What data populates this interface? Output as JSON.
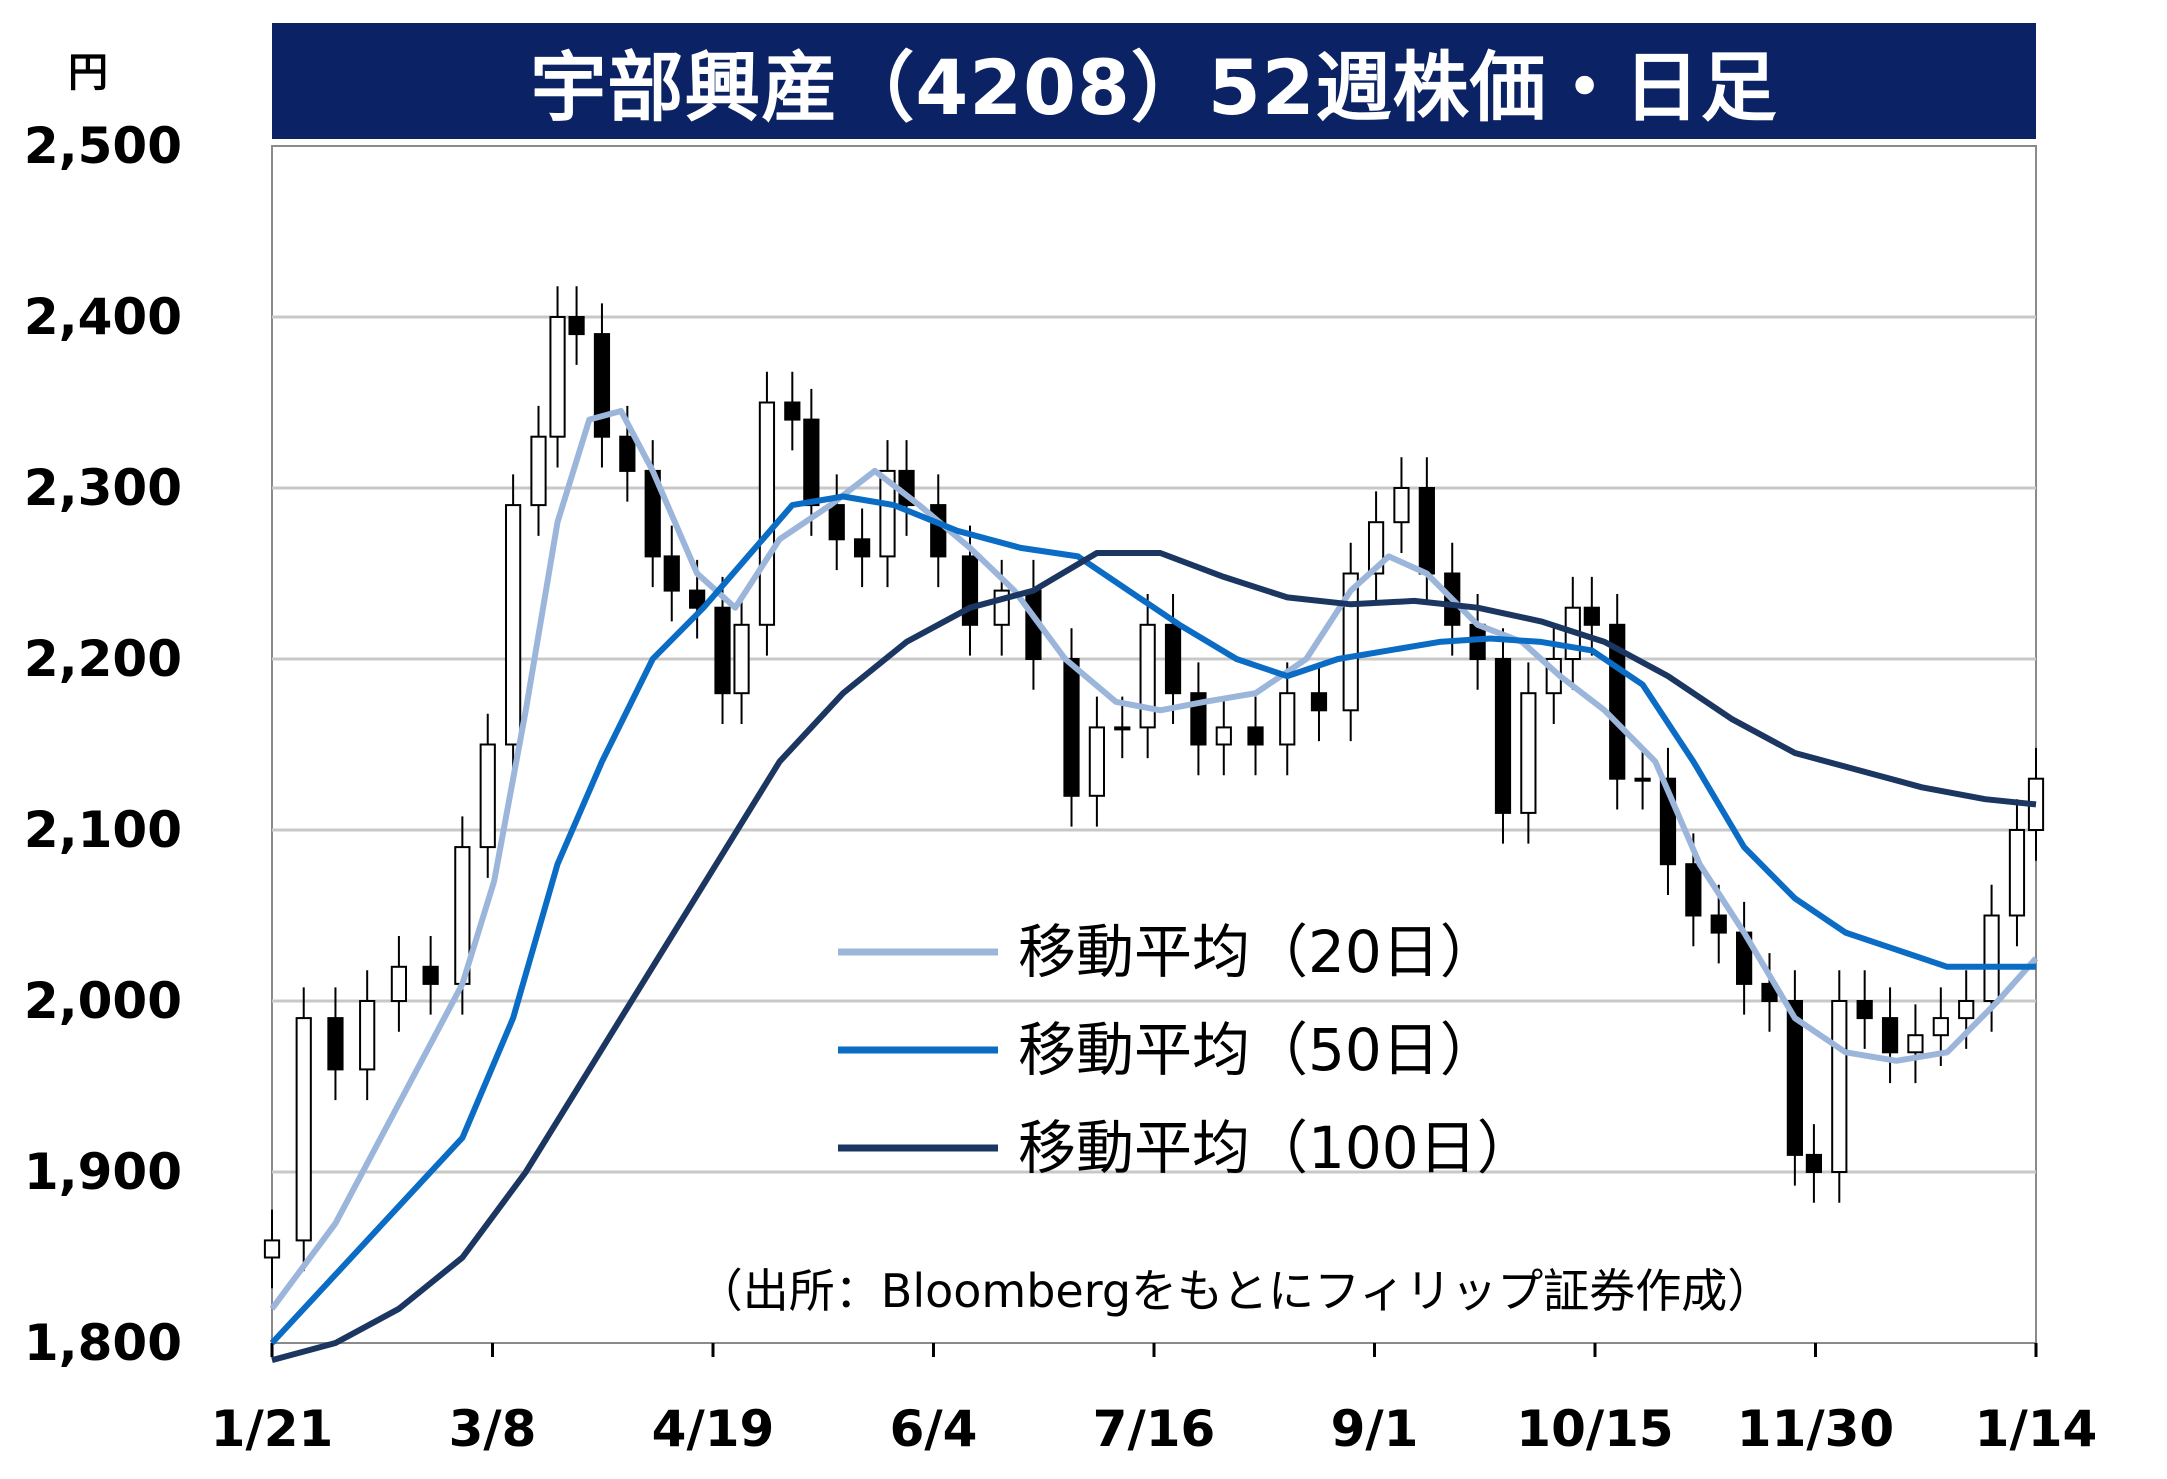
{
  "title": "宇部興産（4208）52週株価・日足",
  "unit": "円",
  "source_note": "（出所：Bloombergをもとにフィリップ証券作成）",
  "colors": {
    "title_bg": "#0b2265",
    "ma20": "#9bb6da",
    "ma50": "#0a6cc4",
    "ma100": "#1b3660",
    "grid": "#c8c8c8",
    "candle": "#000000"
  },
  "chart_data": {
    "type": "line",
    "ylim": [
      1800,
      2500
    ],
    "yticks": [
      1800,
      1900,
      2000,
      2100,
      2200,
      2300,
      2400,
      2500
    ],
    "ytick_labels": [
      "1,800",
      "1,900",
      "2,000",
      "2,100",
      "2,200",
      "2,300",
      "2,400",
      "2,500"
    ],
    "xticks": [
      "1/21",
      "3/8",
      "4/19",
      "6/4",
      "7/16",
      "9/1",
      "10/15",
      "11/30",
      "1/14"
    ],
    "grid": true,
    "legend_placement": "center-right",
    "price_close": [
      [
        0,
        1860
      ],
      [
        5,
        1990
      ],
      [
        10,
        1960
      ],
      [
        15,
        2000
      ],
      [
        20,
        2020
      ],
      [
        25,
        2010
      ],
      [
        30,
        2090
      ],
      [
        34,
        2150
      ],
      [
        38,
        2290
      ],
      [
        42,
        2330
      ],
      [
        45,
        2400
      ],
      [
        48,
        2390
      ],
      [
        52,
        2330
      ],
      [
        56,
        2310
      ],
      [
        60,
        2260
      ],
      [
        63,
        2240
      ],
      [
        67,
        2230
      ],
      [
        71,
        2180
      ],
      [
        74,
        2220
      ],
      [
        78,
        2350
      ],
      [
        82,
        2340
      ],
      [
        85,
        2290
      ],
      [
        89,
        2270
      ],
      [
        93,
        2260
      ],
      [
        97,
        2310
      ],
      [
        100,
        2290
      ],
      [
        105,
        2260
      ],
      [
        110,
        2220
      ],
      [
        115,
        2240
      ],
      [
        120,
        2200
      ],
      [
        126,
        2120
      ],
      [
        130,
        2160
      ],
      [
        134,
        2160
      ],
      [
        138,
        2220
      ],
      [
        142,
        2180
      ],
      [
        146,
        2150
      ],
      [
        150,
        2160
      ],
      [
        155,
        2150
      ],
      [
        160,
        2180
      ],
      [
        165,
        2170
      ],
      [
        170,
        2250
      ],
      [
        174,
        2280
      ],
      [
        178,
        2300
      ],
      [
        182,
        2250
      ],
      [
        186,
        2220
      ],
      [
        190,
        2200
      ],
      [
        194,
        2110
      ],
      [
        198,
        2180
      ],
      [
        202,
        2200
      ],
      [
        205,
        2230
      ],
      [
        208,
        2220
      ],
      [
        212,
        2130
      ],
      [
        216,
        2130
      ],
      [
        220,
        2080
      ],
      [
        224,
        2050
      ],
      [
        228,
        2040
      ],
      [
        232,
        2010
      ],
      [
        236,
        2000
      ],
      [
        240,
        1910
      ],
      [
        243,
        1900
      ],
      [
        247,
        2000
      ],
      [
        251,
        1990
      ],
      [
        255,
        1970
      ],
      [
        259,
        1980
      ],
      [
        263,
        1990
      ],
      [
        267,
        2000
      ],
      [
        271,
        2050
      ],
      [
        275,
        2100
      ],
      [
        278,
        2130
      ]
    ],
    "series": [
      {
        "name": "移動平均（20日）",
        "values": [
          [
            0,
            1820
          ],
          [
            10,
            1870
          ],
          [
            20,
            1940
          ],
          [
            30,
            2010
          ],
          [
            35,
            2070
          ],
          [
            40,
            2170
          ],
          [
            45,
            2280
          ],
          [
            50,
            2340
          ],
          [
            55,
            2345
          ],
          [
            60,
            2310
          ],
          [
            67,
            2250
          ],
          [
            73,
            2230
          ],
          [
            80,
            2270
          ],
          [
            88,
            2290
          ],
          [
            95,
            2310
          ],
          [
            102,
            2290
          ],
          [
            110,
            2265
          ],
          [
            117,
            2240
          ],
          [
            125,
            2200
          ],
          [
            133,
            2175
          ],
          [
            140,
            2170
          ],
          [
            147,
            2175
          ],
          [
            155,
            2180
          ],
          [
            163,
            2200
          ],
          [
            170,
            2240
          ],
          [
            176,
            2260
          ],
          [
            182,
            2250
          ],
          [
            190,
            2220
          ],
          [
            197,
            2210
          ],
          [
            203,
            2190
          ],
          [
            210,
            2170
          ],
          [
            218,
            2140
          ],
          [
            225,
            2080
          ],
          [
            232,
            2040
          ],
          [
            240,
            1990
          ],
          [
            248,
            1970
          ],
          [
            256,
            1965
          ],
          [
            264,
            1970
          ],
          [
            272,
            2000
          ],
          [
            278,
            2025
          ]
        ]
      },
      {
        "name": "移動平均（50日）",
        "values": [
          [
            0,
            1800
          ],
          [
            10,
            1840
          ],
          [
            20,
            1880
          ],
          [
            30,
            1920
          ],
          [
            38,
            1990
          ],
          [
            45,
            2080
          ],
          [
            52,
            2140
          ],
          [
            60,
            2200
          ],
          [
            68,
            2230
          ],
          [
            75,
            2260
          ],
          [
            82,
            2290
          ],
          [
            90,
            2295
          ],
          [
            98,
            2290
          ],
          [
            108,
            2275
          ],
          [
            118,
            2265
          ],
          [
            127,
            2260
          ],
          [
            135,
            2240
          ],
          [
            143,
            2220
          ],
          [
            152,
            2200
          ],
          [
            160,
            2190
          ],
          [
            168,
            2200
          ],
          [
            176,
            2205
          ],
          [
            184,
            2210
          ],
          [
            192,
            2212
          ],
          [
            200,
            2210
          ],
          [
            208,
            2205
          ],
          [
            216,
            2185
          ],
          [
            224,
            2140
          ],
          [
            232,
            2090
          ],
          [
            240,
            2060
          ],
          [
            248,
            2040
          ],
          [
            256,
            2030
          ],
          [
            264,
            2020
          ],
          [
            272,
            2020
          ],
          [
            278,
            2020
          ]
        ]
      },
      {
        "name": "移動平均（100日）",
        "values": [
          [
            0,
            1790
          ],
          [
            10,
            1800
          ],
          [
            20,
            1820
          ],
          [
            30,
            1850
          ],
          [
            40,
            1900
          ],
          [
            50,
            1960
          ],
          [
            60,
            2020
          ],
          [
            70,
            2080
          ],
          [
            80,
            2140
          ],
          [
            90,
            2180
          ],
          [
            100,
            2210
          ],
          [
            110,
            2230
          ],
          [
            120,
            2240
          ],
          [
            130,
            2262
          ],
          [
            140,
            2262
          ],
          [
            150,
            2248
          ],
          [
            160,
            2236
          ],
          [
            170,
            2232
          ],
          [
            180,
            2234
          ],
          [
            190,
            2230
          ],
          [
            200,
            2222
          ],
          [
            210,
            2210
          ],
          [
            220,
            2190
          ],
          [
            230,
            2165
          ],
          [
            240,
            2145
          ],
          [
            250,
            2135
          ],
          [
            260,
            2125
          ],
          [
            270,
            2118
          ],
          [
            278,
            2115
          ]
        ]
      }
    ]
  }
}
